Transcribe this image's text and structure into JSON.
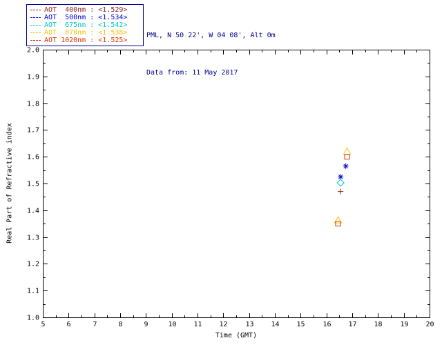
{
  "window": {
    "background": "#ffffff"
  },
  "header": {
    "site_line": "PML, N 50 22', W 04 08', Alt 0m",
    "date_line": "Data from: 11 May 2017",
    "text_color": "#00008b"
  },
  "legend": {
    "border_color": "#00008b",
    "entries": [
      {
        "label": "AOT  400nm : <1.529>"
      },
      {
        "label": "AOT  500nm : <1.534>"
      },
      {
        "label": "AOT  675nm : <1.542>"
      },
      {
        "label": "AOT  870nm : <1.538>"
      },
      {
        "label": "AOT 1020nm : <1.525>"
      }
    ]
  },
  "chart_data": {
    "type": "scatter",
    "title": "",
    "xlabel": "Time (GMT)",
    "ylabel": "Real Part of Refractive index",
    "xlim": [
      5,
      20
    ],
    "ylim": [
      1.0,
      2.0
    ],
    "xticks": [
      5,
      6,
      7,
      8,
      9,
      10,
      11,
      12,
      13,
      14,
      15,
      16,
      17,
      18,
      19,
      20
    ],
    "yticks": [
      1.0,
      1.1,
      1.2,
      1.3,
      1.4,
      1.5,
      1.6,
      1.7,
      1.8,
      1.9,
      2.0
    ],
    "grid": false,
    "frame_color": "#000000",
    "legend_position": "top-left",
    "series": [
      {
        "name": "AOT 400nm",
        "mean": 1.529,
        "color": "#8b2323",
        "marker": "plus",
        "points": [
          [
            16.55,
            1.47
          ]
        ]
      },
      {
        "name": "AOT 500nm",
        "mean": 1.534,
        "color": "#0000e0",
        "marker": "asterisk",
        "points": [
          [
            16.55,
            1.525
          ],
          [
            16.75,
            1.565
          ]
        ]
      },
      {
        "name": "AOT 675nm",
        "mean": 1.542,
        "color": "#00c5cd",
        "marker": "diamond",
        "points": [
          [
            16.55,
            1.503
          ]
        ]
      },
      {
        "name": "AOT 870nm",
        "mean": 1.538,
        "color": "#f2c300",
        "marker": "triangle",
        "points": [
          [
            16.45,
            1.363
          ],
          [
            16.8,
            1.62
          ]
        ]
      },
      {
        "name": "AOT 1020nm",
        "mean": 1.525,
        "color": "#dc3200",
        "marker": "square",
        "points": [
          [
            16.45,
            1.35
          ],
          [
            16.8,
            1.6
          ]
        ]
      }
    ]
  }
}
